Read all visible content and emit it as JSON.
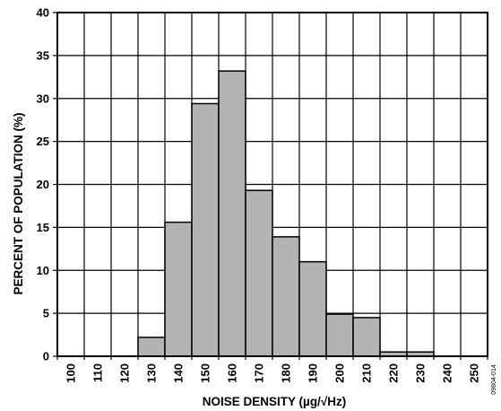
{
  "chart_data": {
    "type": "bar",
    "xlabel": "NOISE DENSITY (µg/√Hz)",
    "ylabel": "PERCENT OF POPULATION (%)",
    "categories": [
      "100",
      "110",
      "120",
      "130",
      "140",
      "150",
      "160",
      "170",
      "180",
      "190",
      "200",
      "210",
      "220",
      "230",
      "240",
      "250"
    ],
    "values": [
      0,
      0,
      0,
      2.2,
      15.6,
      29.4,
      33.2,
      19.3,
      13.9,
      11.0,
      4.9,
      4.5,
      0.5,
      0.5,
      0,
      0
    ],
    "ylim": [
      0,
      40
    ],
    "yticks": [
      0,
      5,
      10,
      15,
      20,
      25,
      30,
      35,
      40
    ],
    "grid": true,
    "bar_color": "#b3b3b3",
    "edge_color": "#000000"
  },
  "figure_id": "09804-014"
}
